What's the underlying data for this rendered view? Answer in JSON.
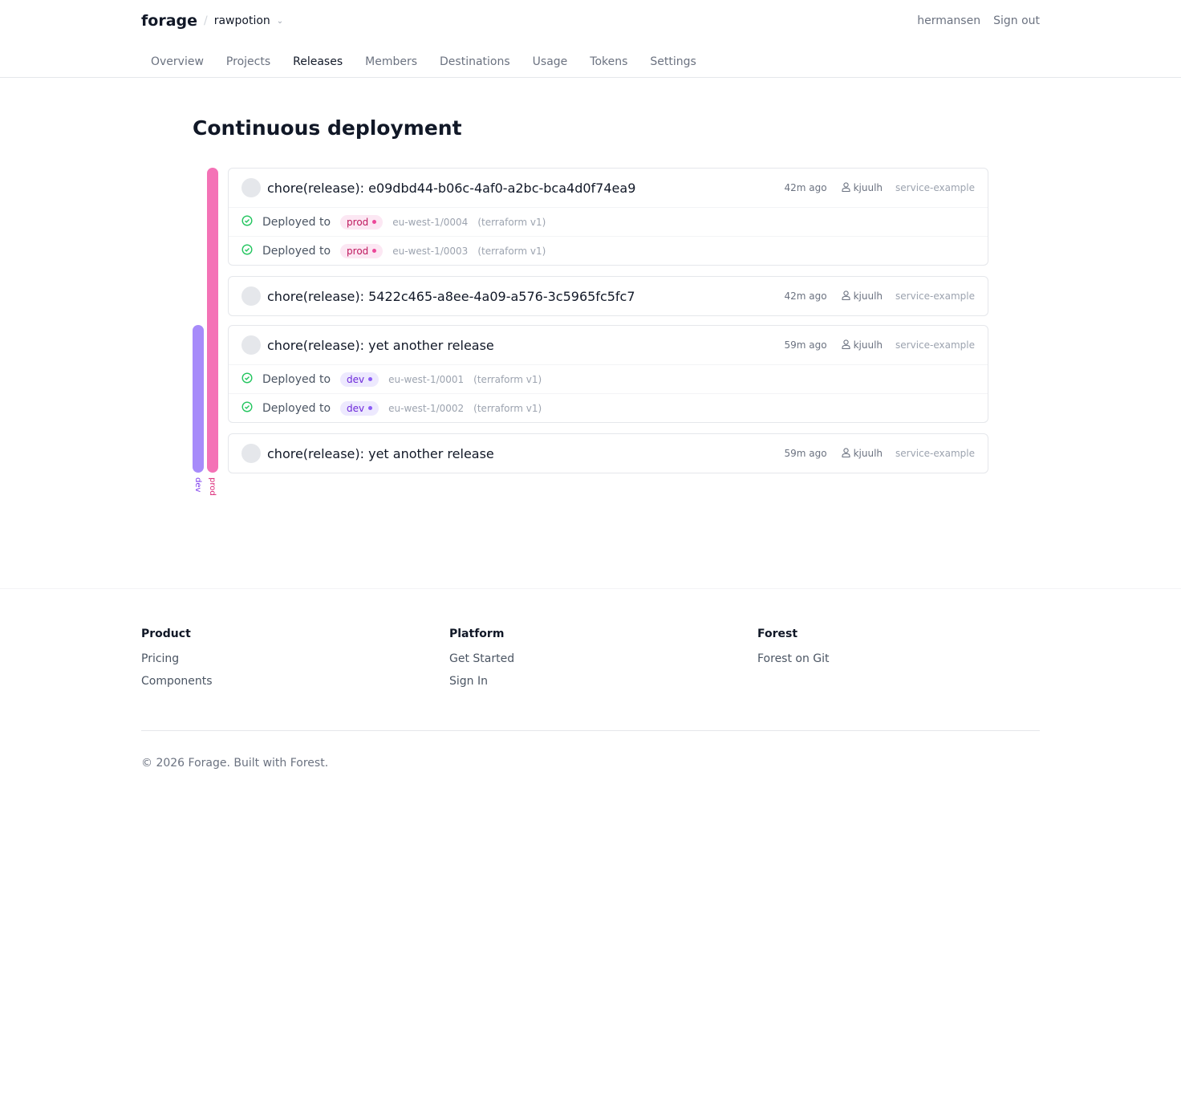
{
  "header": {
    "logo": "forage",
    "org": "rawpotion",
    "user": "hermansen",
    "sign_out": "Sign out"
  },
  "nav": [
    {
      "label": "Overview"
    },
    {
      "label": "Projects"
    },
    {
      "label": "Releases",
      "active": true
    },
    {
      "label": "Members"
    },
    {
      "label": "Destinations"
    },
    {
      "label": "Usage"
    },
    {
      "label": "Tokens"
    },
    {
      "label": "Settings"
    }
  ],
  "page_title": "Continuous deployment",
  "rails": {
    "dev": {
      "label": "dev",
      "color": "#a78bfa"
    },
    "prod": {
      "label": "prod",
      "color": "#f472b6"
    }
  },
  "releases": [
    {
      "title": "chore(release): e09dbd44-b06c-4af0-a2bc-bca4d0f74ea9",
      "time": "42m ago",
      "author": "kjuulh",
      "project": "service-example",
      "deployments": [
        {
          "label": "Deployed to",
          "env": "prod",
          "destination": "eu-west-1/0004",
          "type": "(terraform v1)"
        },
        {
          "label": "Deployed to",
          "env": "prod",
          "destination": "eu-west-1/0003",
          "type": "(terraform v1)"
        }
      ]
    },
    {
      "title": "chore(release): 5422c465-a8ee-4a09-a576-3c5965fc5fc7",
      "time": "42m ago",
      "author": "kjuulh",
      "project": "service-example",
      "deployments": []
    },
    {
      "title": "chore(release): yet another release",
      "time": "59m ago",
      "author": "kjuulh",
      "project": "service-example",
      "deployments": [
        {
          "label": "Deployed to",
          "env": "dev",
          "destination": "eu-west-1/0001",
          "type": "(terraform v1)"
        },
        {
          "label": "Deployed to",
          "env": "dev",
          "destination": "eu-west-1/0002",
          "type": "(terraform v1)"
        }
      ]
    },
    {
      "title": "chore(release): yet another release",
      "time": "59m ago",
      "author": "kjuulh",
      "project": "service-example",
      "deployments": []
    }
  ],
  "footer": {
    "columns": [
      {
        "heading": "Product",
        "links": [
          "Pricing",
          "Components"
        ]
      },
      {
        "heading": "Platform",
        "links": [
          "Get Started",
          "Sign In"
        ]
      },
      {
        "heading": "Forest",
        "links": [
          "Forest on Git"
        ]
      }
    ],
    "copyright": "© 2026 Forage. Built with Forest."
  }
}
